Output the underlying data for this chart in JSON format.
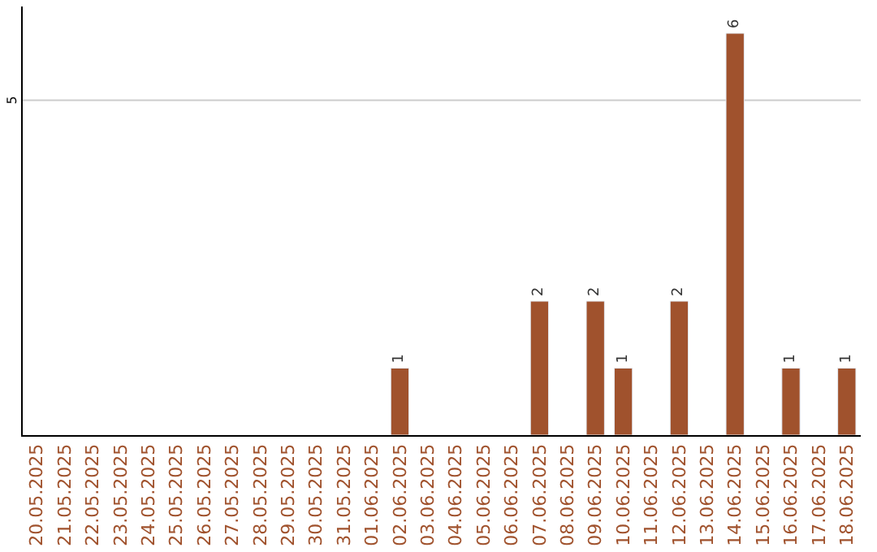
{
  "chart_data": {
    "type": "bar",
    "categories": [
      "20.05.2025",
      "21.05.2025",
      "22.05.2025",
      "23.05.2025",
      "24.05.2025",
      "25.05.2025",
      "26.05.2025",
      "27.05.2025",
      "28.05.2025",
      "29.05.2025",
      "30.05.2025",
      "31.05.2025",
      "01.06.2025",
      "02.06.2025",
      "03.06.2025",
      "04.06.2025",
      "05.06.2025",
      "06.06.2025",
      "07.06.2025",
      "08.06.2025",
      "09.06.2025",
      "10.06.2025",
      "11.06.2025",
      "12.06.2025",
      "13.06.2025",
      "14.06.2025",
      "15.06.2025",
      "16.06.2025",
      "17.06.2025",
      "18.06.2025"
    ],
    "values": [
      null,
      null,
      null,
      null,
      null,
      null,
      null,
      null,
      null,
      null,
      null,
      null,
      null,
      1,
      null,
      null,
      null,
      null,
      2,
      null,
      2,
      1,
      null,
      2,
      null,
      6,
      null,
      1,
      null,
      1
    ],
    "data_labels": true,
    "color": "#a0522d",
    "ylim": [
      0,
      6.4
    ],
    "ref_lines": [
      {
        "axis": "y",
        "value": 5,
        "label": "5",
        "color": "#cccccc"
      }
    ],
    "legend": false
  }
}
